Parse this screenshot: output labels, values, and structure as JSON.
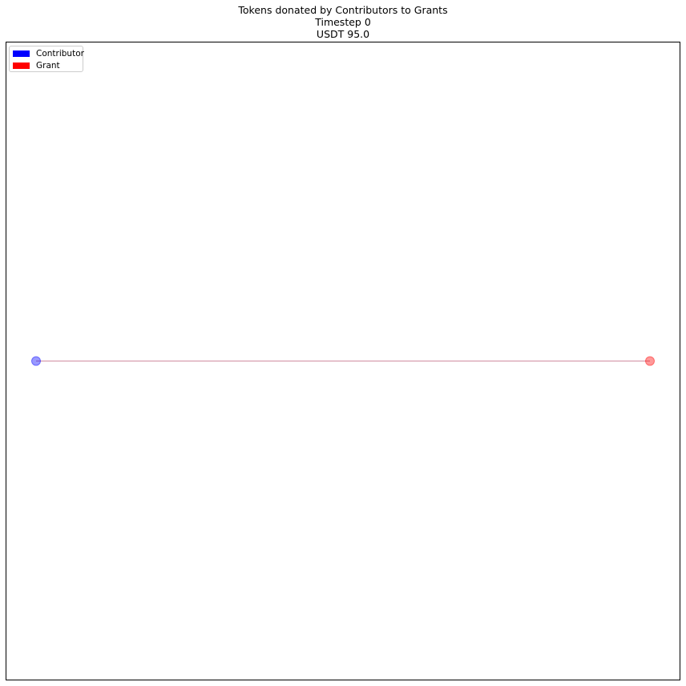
{
  "title": {
    "line1": "Tokens donated by Contributors to Grants",
    "line2": "Timestep 0",
    "line3": "USDT 95.0"
  },
  "legend": {
    "items": [
      {
        "label": "Contributor",
        "color": "#0000ff"
      },
      {
        "label": "Grant",
        "color": "#ff0000"
      }
    ]
  },
  "graph": {
    "nodes": [
      {
        "type": "Contributor",
        "color": "#0000ff",
        "alpha": 0.4
      },
      {
        "type": "Grant",
        "color": "#ff0000",
        "alpha": 0.4
      }
    ],
    "edges": [
      {
        "from": "Contributor",
        "to": "Grant",
        "color": "#b04060"
      }
    ]
  }
}
